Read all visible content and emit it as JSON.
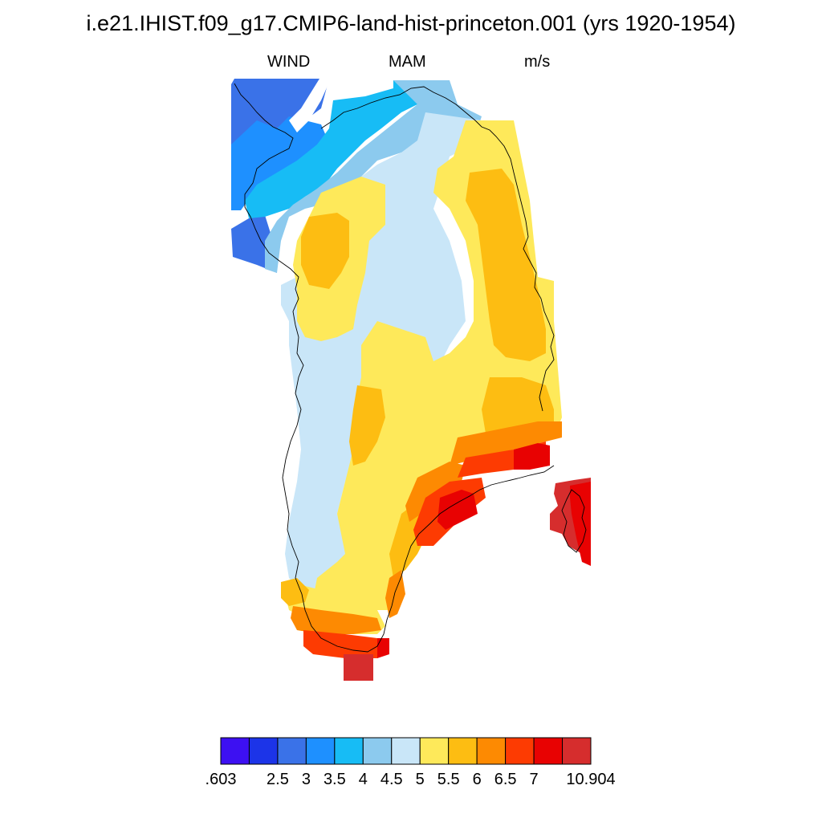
{
  "title": "i.e21.IHIST.f09_g17.CMIP6-land-hist-princeton.001 (yrs 1920-1954)",
  "subtitle": {
    "variable": "WIND",
    "season": "MAM",
    "units": "m/s"
  },
  "colorbar": {
    "colors": [
      "#3d10f2",
      "#1c34e8",
      "#3a72e8",
      "#1e90ff",
      "#17bcf5",
      "#8ccaee",
      "#c9e6f8",
      "#fee95a",
      "#fdbd12",
      "#fd8a02",
      "#fd3b02",
      "#e80202",
      "#d62d2d"
    ],
    "tick_labels": [
      ".603",
      "2.5",
      "3",
      "3.5",
      "4",
      "4.5",
      "5",
      "5.5",
      "6",
      "6.5",
      "7",
      "10.904"
    ]
  },
  "legend_colors_note": "level colors",
  "region_colors": {
    "blue_dark": "#3a72e8",
    "blue": "#1e90ff",
    "cyan": "#17bcf5",
    "sky": "#8ccaee",
    "pale": "#c9e6f8",
    "yellow": "#fee95a",
    "gold": "#fdbd12",
    "orange": "#fd8a02",
    "red_orange": "#fd3b02",
    "red": "#e80202",
    "dark_red": "#d62d2d"
  }
}
